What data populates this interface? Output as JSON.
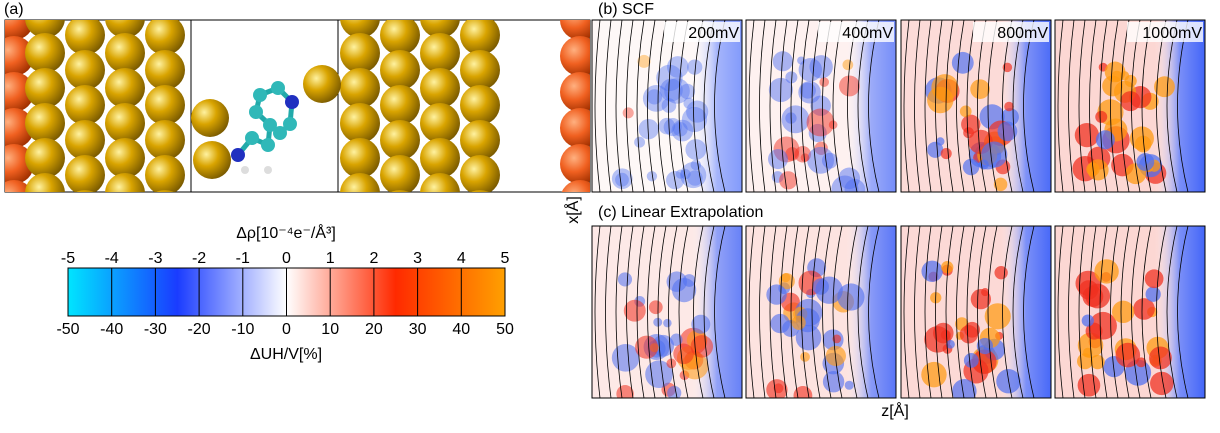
{
  "panel_a": {
    "label": "(a)"
  },
  "colorbar": {
    "title": "Δρ[10⁻⁴e⁻/Å³]",
    "top_ticks": [
      -5,
      -4,
      -3,
      -2,
      -1,
      0,
      1,
      2,
      3,
      4,
      5
    ],
    "bottom_ticks": [
      -50,
      -40,
      -30,
      -20,
      -10,
      0,
      10,
      20,
      30,
      40,
      50
    ],
    "bottom_label": "ΔUH/V[%]"
  },
  "panel_b": {
    "label": "(b) SCF",
    "maps": [
      "200mV",
      "400mV",
      "800mV",
      "1000mV"
    ]
  },
  "panel_c": {
    "label": "(c) Linear Extrapolation"
  },
  "axes": {
    "y_label": "x[Å]",
    "x_label": "z[Å]"
  }
}
